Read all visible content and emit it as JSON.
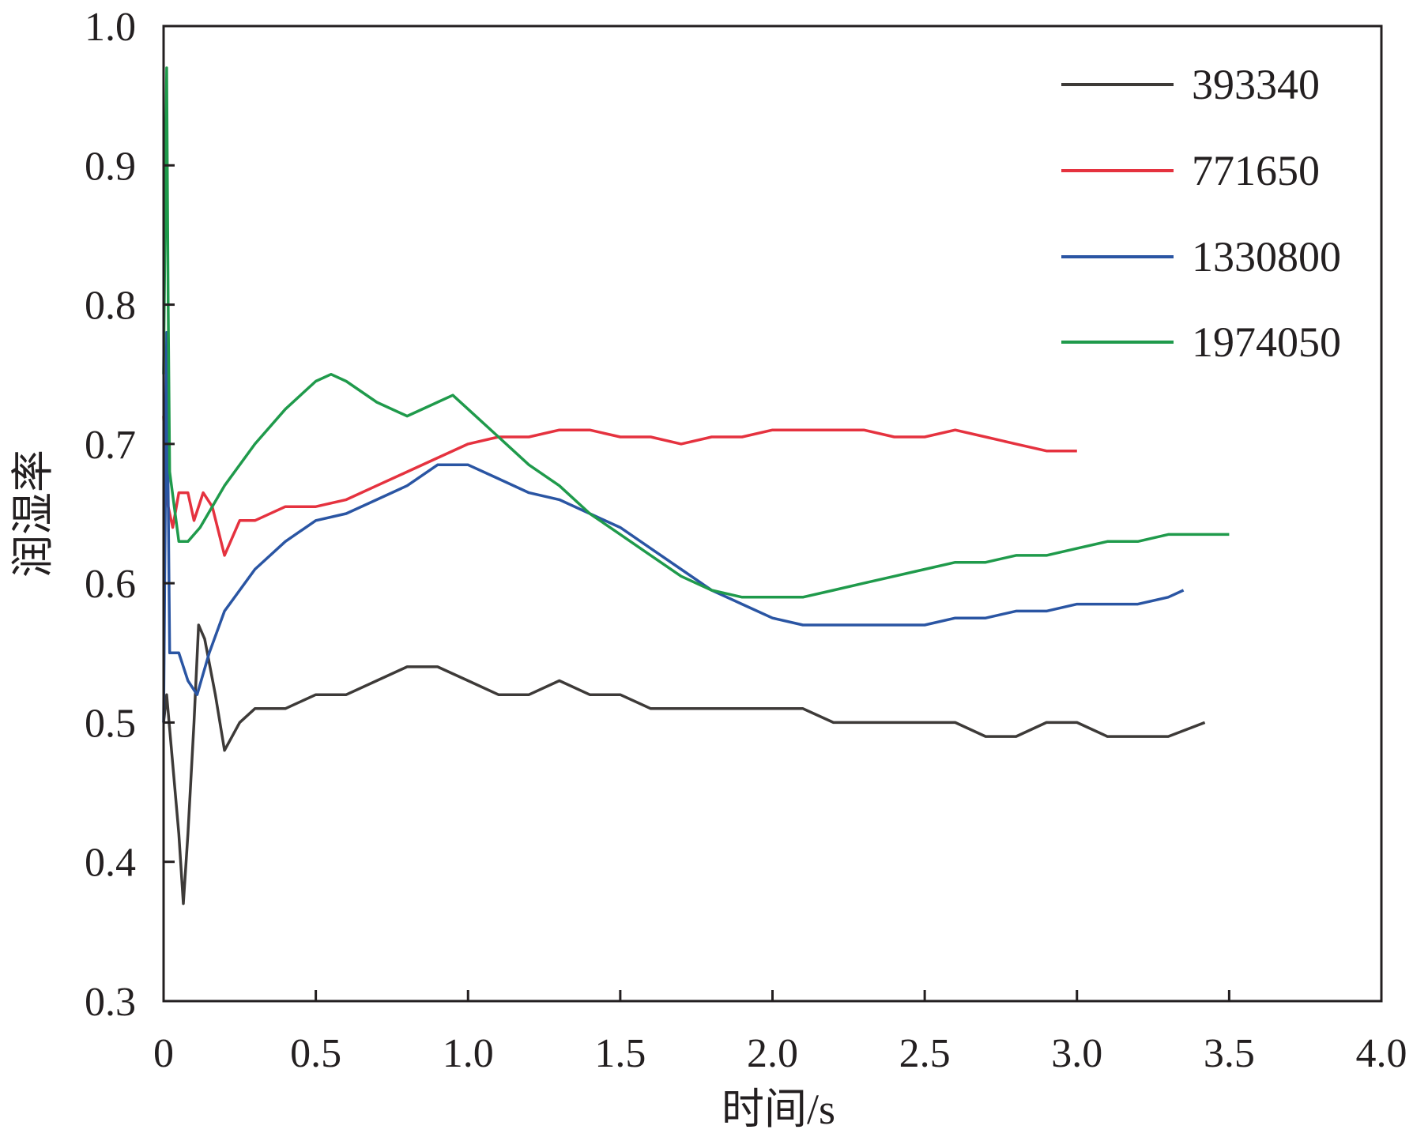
{
  "chart_data": {
    "type": "line",
    "xlabel": "时间/s",
    "ylabel": "润湿率",
    "xlim": [
      0,
      4.0
    ],
    "ylim": [
      0.3,
      1.0
    ],
    "x_ticks": [
      "0",
      "0.5",
      "1.0",
      "1.5",
      "2.0",
      "2.5",
      "3.0",
      "3.5",
      "4.0"
    ],
    "y_ticks": [
      "0.3",
      "0.4",
      "0.5",
      "0.6",
      "0.7",
      "0.8",
      "0.9",
      "1.0"
    ],
    "grid": false,
    "legend_position": "top-right",
    "series": [
      {
        "name": "393340",
        "color": "#3d3a38",
        "points": [
          [
            0.0,
            0.5
          ],
          [
            0.01,
            0.52
          ],
          [
            0.03,
            0.47
          ],
          [
            0.05,
            0.42
          ],
          [
            0.065,
            0.37
          ],
          [
            0.08,
            0.42
          ],
          [
            0.1,
            0.5
          ],
          [
            0.115,
            0.57
          ],
          [
            0.135,
            0.56
          ],
          [
            0.17,
            0.52
          ],
          [
            0.2,
            0.48
          ],
          [
            0.25,
            0.5
          ],
          [
            0.3,
            0.51
          ],
          [
            0.4,
            0.51
          ],
          [
            0.5,
            0.52
          ],
          [
            0.6,
            0.52
          ],
          [
            0.7,
            0.53
          ],
          [
            0.8,
            0.54
          ],
          [
            0.9,
            0.54
          ],
          [
            1.0,
            0.53
          ],
          [
            1.1,
            0.52
          ],
          [
            1.2,
            0.52
          ],
          [
            1.3,
            0.53
          ],
          [
            1.4,
            0.52
          ],
          [
            1.5,
            0.52
          ],
          [
            1.6,
            0.51
          ],
          [
            1.7,
            0.51
          ],
          [
            1.8,
            0.51
          ],
          [
            1.9,
            0.51
          ],
          [
            2.0,
            0.51
          ],
          [
            2.1,
            0.51
          ],
          [
            2.2,
            0.5
          ],
          [
            2.3,
            0.5
          ],
          [
            2.4,
            0.5
          ],
          [
            2.5,
            0.5
          ],
          [
            2.6,
            0.5
          ],
          [
            2.7,
            0.49
          ],
          [
            2.8,
            0.49
          ],
          [
            2.9,
            0.5
          ],
          [
            3.0,
            0.5
          ],
          [
            3.1,
            0.49
          ],
          [
            3.2,
            0.49
          ],
          [
            3.3,
            0.49
          ],
          [
            3.42,
            0.5
          ]
        ]
      },
      {
        "name": "771650",
        "color": "#e5323f",
        "points": [
          [
            0.0,
            0.72
          ],
          [
            0.01,
            0.66
          ],
          [
            0.03,
            0.64
          ],
          [
            0.05,
            0.665
          ],
          [
            0.08,
            0.665
          ],
          [
            0.1,
            0.645
          ],
          [
            0.13,
            0.665
          ],
          [
            0.16,
            0.655
          ],
          [
            0.2,
            0.62
          ],
          [
            0.25,
            0.645
          ],
          [
            0.3,
            0.645
          ],
          [
            0.4,
            0.655
          ],
          [
            0.5,
            0.655
          ],
          [
            0.6,
            0.66
          ],
          [
            0.7,
            0.67
          ],
          [
            0.8,
            0.68
          ],
          [
            0.9,
            0.69
          ],
          [
            1.0,
            0.7
          ],
          [
            1.1,
            0.705
          ],
          [
            1.2,
            0.705
          ],
          [
            1.3,
            0.71
          ],
          [
            1.4,
            0.71
          ],
          [
            1.5,
            0.705
          ],
          [
            1.6,
            0.705
          ],
          [
            1.7,
            0.7
          ],
          [
            1.8,
            0.705
          ],
          [
            1.9,
            0.705
          ],
          [
            2.0,
            0.71
          ],
          [
            2.1,
            0.71
          ],
          [
            2.2,
            0.71
          ],
          [
            2.3,
            0.71
          ],
          [
            2.4,
            0.705
          ],
          [
            2.5,
            0.705
          ],
          [
            2.6,
            0.71
          ],
          [
            2.7,
            0.705
          ],
          [
            2.8,
            0.7
          ],
          [
            2.9,
            0.695
          ],
          [
            3.0,
            0.695
          ]
        ]
      },
      {
        "name": "1330800",
        "color": "#2a55a3",
        "points": [
          [
            0.0,
            0.5
          ],
          [
            0.01,
            0.78
          ],
          [
            0.02,
            0.55
          ],
          [
            0.05,
            0.55
          ],
          [
            0.08,
            0.53
          ],
          [
            0.11,
            0.52
          ],
          [
            0.15,
            0.55
          ],
          [
            0.2,
            0.58
          ],
          [
            0.3,
            0.61
          ],
          [
            0.4,
            0.63
          ],
          [
            0.5,
            0.645
          ],
          [
            0.6,
            0.65
          ],
          [
            0.7,
            0.66
          ],
          [
            0.8,
            0.67
          ],
          [
            0.9,
            0.685
          ],
          [
            1.0,
            0.685
          ],
          [
            1.1,
            0.675
          ],
          [
            1.2,
            0.665
          ],
          [
            1.3,
            0.66
          ],
          [
            1.4,
            0.65
          ],
          [
            1.5,
            0.64
          ],
          [
            1.6,
            0.625
          ],
          [
            1.7,
            0.61
          ],
          [
            1.8,
            0.595
          ],
          [
            1.9,
            0.585
          ],
          [
            2.0,
            0.575
          ],
          [
            2.1,
            0.57
          ],
          [
            2.2,
            0.57
          ],
          [
            2.3,
            0.57
          ],
          [
            2.4,
            0.57
          ],
          [
            2.5,
            0.57
          ],
          [
            2.6,
            0.575
          ],
          [
            2.7,
            0.575
          ],
          [
            2.8,
            0.58
          ],
          [
            2.9,
            0.58
          ],
          [
            3.0,
            0.585
          ],
          [
            3.1,
            0.585
          ],
          [
            3.2,
            0.585
          ],
          [
            3.3,
            0.59
          ],
          [
            3.35,
            0.595
          ]
        ]
      },
      {
        "name": "1974050",
        "color": "#1f9a4b",
        "points": [
          [
            0.0,
            0.75
          ],
          [
            0.01,
            0.97
          ],
          [
            0.015,
            0.8
          ],
          [
            0.02,
            0.68
          ],
          [
            0.05,
            0.63
          ],
          [
            0.08,
            0.63
          ],
          [
            0.12,
            0.64
          ],
          [
            0.2,
            0.67
          ],
          [
            0.3,
            0.7
          ],
          [
            0.4,
            0.725
          ],
          [
            0.5,
            0.745
          ],
          [
            0.55,
            0.75
          ],
          [
            0.6,
            0.745
          ],
          [
            0.7,
            0.73
          ],
          [
            0.8,
            0.72
          ],
          [
            0.9,
            0.73
          ],
          [
            0.95,
            0.735
          ],
          [
            1.0,
            0.725
          ],
          [
            1.1,
            0.705
          ],
          [
            1.2,
            0.685
          ],
          [
            1.3,
            0.67
          ],
          [
            1.4,
            0.65
          ],
          [
            1.5,
            0.635
          ],
          [
            1.6,
            0.62
          ],
          [
            1.7,
            0.605
          ],
          [
            1.8,
            0.595
          ],
          [
            1.9,
            0.59
          ],
          [
            2.0,
            0.59
          ],
          [
            2.1,
            0.59
          ],
          [
            2.2,
            0.595
          ],
          [
            2.3,
            0.6
          ],
          [
            2.4,
            0.605
          ],
          [
            2.5,
            0.61
          ],
          [
            2.6,
            0.615
          ],
          [
            2.7,
            0.615
          ],
          [
            2.8,
            0.62
          ],
          [
            2.9,
            0.62
          ],
          [
            3.0,
            0.625
          ],
          [
            3.1,
            0.63
          ],
          [
            3.2,
            0.63
          ],
          [
            3.3,
            0.635
          ],
          [
            3.4,
            0.635
          ],
          [
            3.5,
            0.635
          ]
        ]
      }
    ]
  }
}
